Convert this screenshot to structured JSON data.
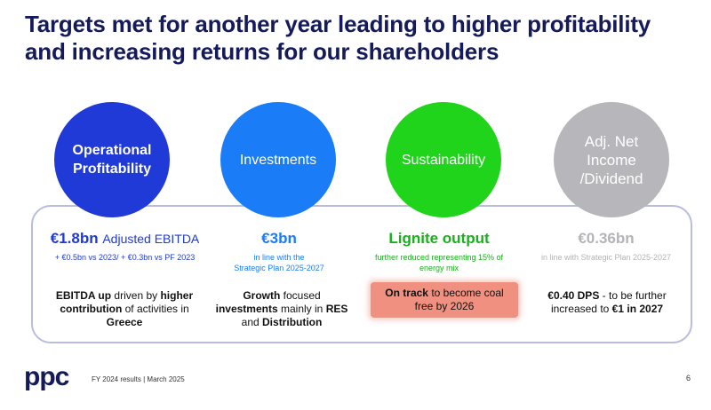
{
  "title": {
    "line1": "Targets met for another year leading to higher profitability",
    "line2": "and increasing returns for our shareholders"
  },
  "circles": [
    {
      "line1": "Operational",
      "line2": "Profitability",
      "color": "#1f3ad6"
    },
    {
      "line1": "Investments",
      "line2": "",
      "color": "#1a7cf7"
    },
    {
      "line1": "Sustainability",
      "line2": "",
      "color": "#20d41c"
    },
    {
      "line1": "Adj. Net Income",
      "line2": "/Dividend",
      "color": "#b7b7bb"
    }
  ],
  "columns": [
    {
      "value": "€1.8bn",
      "label": "Adjusted EBITDA",
      "sub1": "+ €0.5bn vs 2023/ + €0.3bn vs PF 2023",
      "sub2": "",
      "desc": {
        "b1": "EBITDA up",
        "t1": " driven by ",
        "b2": "higher",
        "line2b": "contribution",
        "line2t": " of activities in",
        "line3": "Greece"
      }
    },
    {
      "value": "€3bn",
      "label": "",
      "sub1": "in line with the",
      "sub2": "Strategic Plan 2025-2027",
      "desc": {
        "b1": "Growth",
        "t1": " focused",
        "line2b": "investments",
        "line2t": " mainly in ",
        "line2b2": "RES",
        "line3t": "and ",
        "line3b": "Distribution"
      }
    },
    {
      "value": "Lignite output",
      "label": "",
      "sub1": "further reduced representing 15% of",
      "sub2": "energy mix",
      "desc": {
        "b1": "On track",
        "t1": " to become coal",
        "line2": "free by 2026"
      }
    },
    {
      "value": "€0.36bn",
      "label": "",
      "sub1": "in line with Strategic Plan 2025-2027",
      "sub2": "",
      "desc": {
        "b1": "€0.40 DPS",
        "t1": " - to be further",
        "line2t": "increased to ",
        "line2b": "€1 in 2027"
      }
    }
  ],
  "footer": {
    "logo": "ppc",
    "text": "FY 2024 results | March 2025",
    "page": "6"
  }
}
